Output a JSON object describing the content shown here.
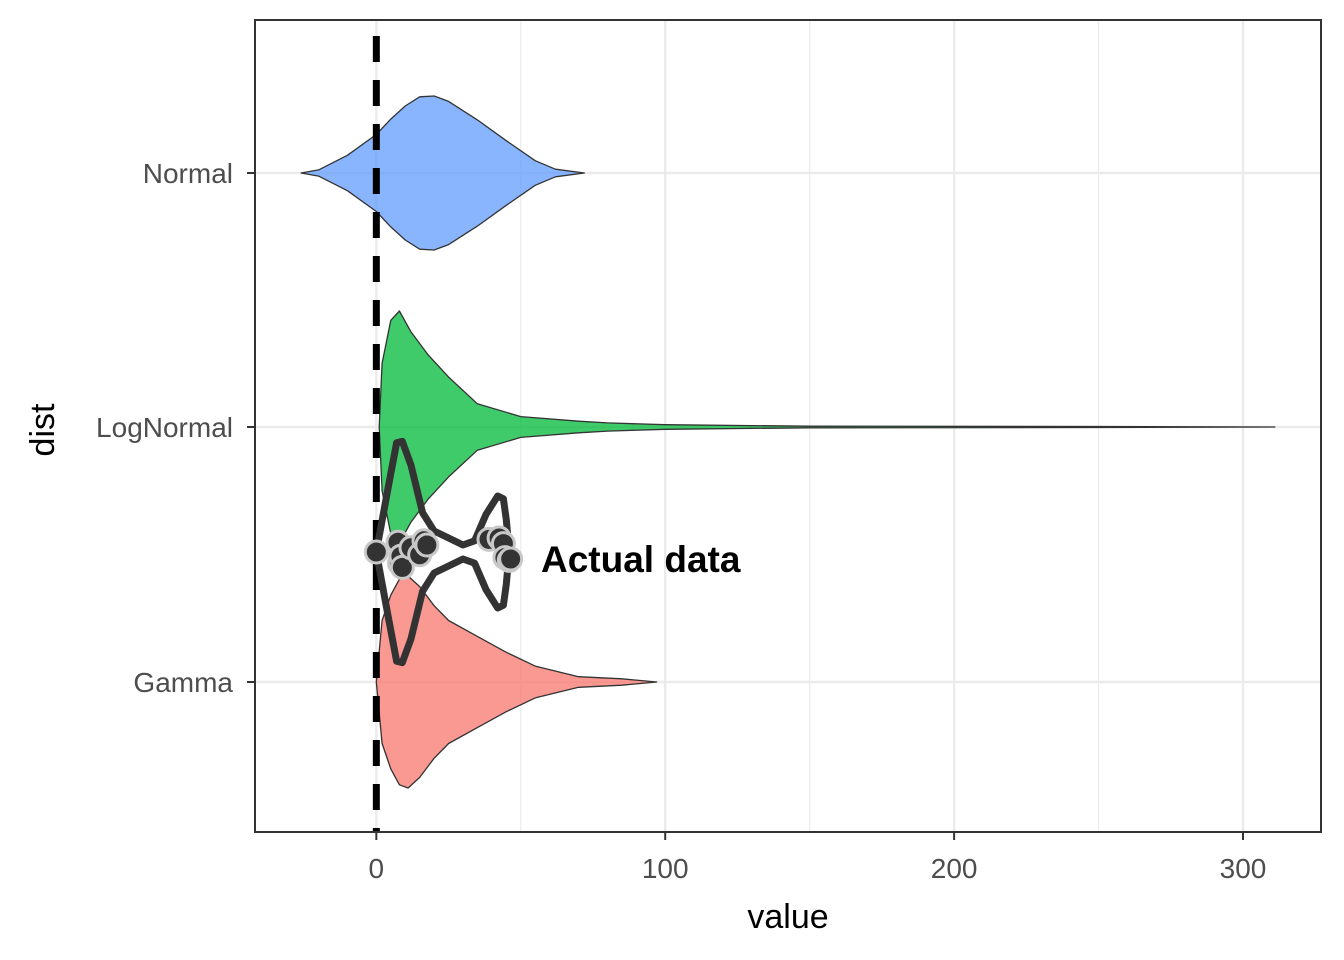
{
  "chart_data": {
    "type": "violin",
    "xlabel": "value",
    "ylabel": "dist",
    "xlim": [
      -42,
      327
    ],
    "x_ticks": [
      0,
      100,
      200,
      300
    ],
    "x_tick_labels": [
      "0",
      "100",
      "200",
      "300"
    ],
    "categories": [
      "Normal",
      "LogNormal",
      "Gamma"
    ],
    "grid": true,
    "legend": "none",
    "reference_line": {
      "x": 0,
      "style": "dashed",
      "color": "#000000"
    },
    "series": [
      {
        "category": "Normal",
        "color": "#619CFF",
        "density_profile": [
          [
            -26,
            0.0
          ],
          [
            -20,
            0.04
          ],
          [
            -10,
            0.23
          ],
          [
            0,
            0.5
          ],
          [
            5,
            0.7
          ],
          [
            10,
            0.87
          ],
          [
            15,
            0.99
          ],
          [
            20,
            1.0
          ],
          [
            25,
            0.93
          ],
          [
            35,
            0.69
          ],
          [
            45,
            0.42
          ],
          [
            55,
            0.16
          ],
          [
            62,
            0.05
          ],
          [
            72,
            0.0
          ]
        ]
      },
      {
        "category": "LogNormal",
        "color": "#00BA38",
        "density_profile": [
          [
            1,
            0.0
          ],
          [
            2,
            0.55
          ],
          [
            5,
            0.92
          ],
          [
            8,
            1.0
          ],
          [
            12,
            0.82
          ],
          [
            18,
            0.62
          ],
          [
            25,
            0.43
          ],
          [
            35,
            0.2
          ],
          [
            50,
            0.09
          ],
          [
            70,
            0.05
          ],
          [
            80,
            0.035
          ],
          [
            100,
            0.02
          ],
          [
            150,
            0.007
          ],
          [
            250,
            0.004
          ],
          [
            311,
            0.0
          ]
        ]
      },
      {
        "category": "Gamma",
        "color": "#F8766D",
        "density_profile": [
          [
            0,
            0.0
          ],
          [
            2,
            0.58
          ],
          [
            5,
            0.82
          ],
          [
            8,
            0.97
          ],
          [
            11,
            1.0
          ],
          [
            15,
            0.9
          ],
          [
            20,
            0.72
          ],
          [
            25,
            0.58
          ],
          [
            35,
            0.43
          ],
          [
            45,
            0.28
          ],
          [
            55,
            0.15
          ],
          [
            70,
            0.05
          ],
          [
            85,
            0.03
          ],
          [
            97,
            0.0
          ]
        ]
      }
    ],
    "actual_data": {
      "label": "Actual data",
      "points": [
        [
          0.0,
          0.0
        ],
        [
          7.5,
          0.07
        ],
        [
          8.0,
          -0.08
        ],
        [
          8.5,
          -0.03
        ],
        [
          9.0,
          -0.11
        ],
        [
          12.0,
          0.03
        ],
        [
          15.0,
          -0.02
        ],
        [
          16.5,
          0.08
        ],
        [
          17.5,
          0.05
        ],
        [
          39.0,
          0.09
        ],
        [
          42.5,
          0.1
        ],
        [
          44.0,
          0.06
        ],
        [
          44.5,
          -0.04
        ],
        [
          46.0,
          -0.06
        ],
        [
          46.5,
          -0.05
        ]
      ],
      "density_profile": [
        [
          0,
          0.0
        ],
        [
          4,
          0.45
        ],
        [
          7,
          0.78
        ],
        [
          9,
          0.79
        ],
        [
          12,
          0.62
        ],
        [
          16,
          0.28
        ],
        [
          20,
          0.15
        ],
        [
          25,
          0.1
        ],
        [
          30,
          0.05
        ],
        [
          34,
          0.08
        ],
        [
          38,
          0.27
        ],
        [
          42,
          0.4
        ],
        [
          44,
          0.38
        ],
        [
          45,
          0.23
        ],
        [
          46,
          0.0
        ]
      ]
    }
  }
}
